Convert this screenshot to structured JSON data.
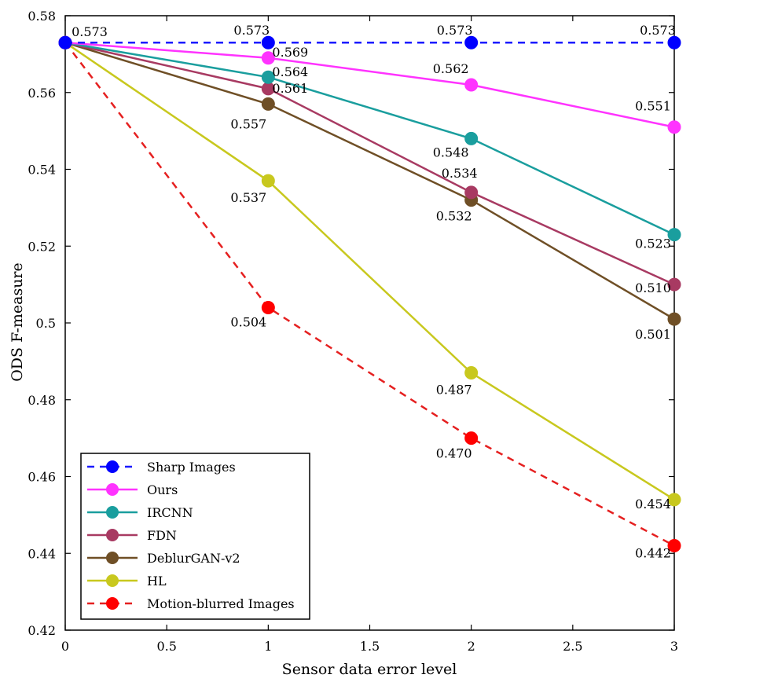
{
  "chart_data": {
    "type": "line",
    "xlabel": "Sensor data error level",
    "ylabel": "ODS F-measure",
    "xlim": [
      0,
      3
    ],
    "ylim": [
      0.42,
      0.58
    ],
    "x": [
      0,
      1,
      2,
      3
    ],
    "xticks": [
      "0",
      "0.5",
      "1",
      "1.5",
      "2",
      "2.5",
      "3"
    ],
    "yticks": [
      "0.42",
      "0.44",
      "0.46",
      "0.48",
      "0.5",
      "0.52",
      "0.54",
      "0.56",
      "0.58"
    ],
    "grid": false,
    "legend_position": "bottom-left",
    "series": [
      {
        "name": "Sharp Images",
        "values": [
          0.573,
          0.573,
          0.573,
          0.573
        ],
        "color": "#1a1aff",
        "marker_color": "#0000ff",
        "dashed": true,
        "labels": [
          "0.573",
          "0.573",
          "0.573",
          "0.573"
        ]
      },
      {
        "name": "Ours",
        "values": [
          0.573,
          0.569,
          0.562,
          0.551
        ],
        "color": "#ff33ff",
        "marker_color": "#ff33ff",
        "dashed": false,
        "labels": [
          "",
          "0.569",
          "0.562",
          "0.551"
        ]
      },
      {
        "name": "IRCNN",
        "values": [
          0.573,
          0.564,
          0.548,
          0.523
        ],
        "color": "#1a9e9e",
        "marker_color": "#1a9e9e",
        "dashed": false,
        "labels": [
          "",
          "0.564",
          "0.548",
          "0.523"
        ]
      },
      {
        "name": "FDN",
        "values": [
          0.573,
          0.561,
          0.534,
          0.51
        ],
        "color": "#a83a62",
        "marker_color": "#a83a62",
        "dashed": false,
        "labels": [
          "",
          "0.561",
          "0.534",
          "0.510"
        ]
      },
      {
        "name": "DeblurGAN-v2",
        "values": [
          0.573,
          0.557,
          0.532,
          0.501
        ],
        "color": "#6f4f26",
        "marker_color": "#6f4f26",
        "dashed": false,
        "labels": [
          "",
          "0.557",
          "0.532",
          "0.501"
        ]
      },
      {
        "name": "HL",
        "values": [
          0.573,
          0.537,
          0.487,
          0.454
        ],
        "color": "#c8c81e",
        "marker_color": "#c8c81e",
        "dashed": false,
        "labels": [
          "",
          "0.537",
          "0.487",
          "0.454"
        ]
      },
      {
        "name": "Motion-blurred Images",
        "values": [
          0.573,
          0.504,
          0.47,
          0.442
        ],
        "color": "#e52020",
        "marker_color": "#ff0000",
        "dashed": true,
        "labels": [
          "",
          "0.504",
          "0.470",
          "0.442"
        ]
      }
    ]
  }
}
